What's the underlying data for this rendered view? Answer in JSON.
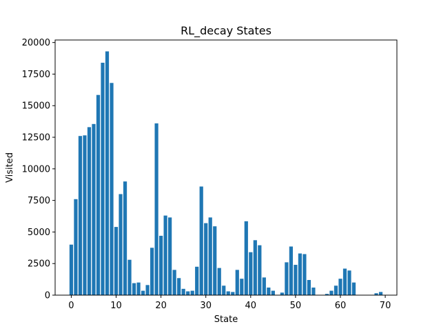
{
  "chart_data": {
    "type": "bar",
    "title": "RL_decay States",
    "xlabel": "State",
    "ylabel": "Visited",
    "xlim": [
      -3.6,
      72.6
    ],
    "ylim": [
      0,
      20200
    ],
    "xticks": [
      0,
      10,
      20,
      30,
      40,
      50,
      60,
      70
    ],
    "xtick_labels": [
      "0",
      "10",
      "20",
      "30",
      "40",
      "50",
      "60",
      "70"
    ],
    "yticks": [
      0,
      2500,
      5000,
      7500,
      10000,
      12500,
      15000,
      17500,
      20000
    ],
    "ytick_labels": [
      "0",
      "2500",
      "5000",
      "7500",
      "10000",
      "12500",
      "15000",
      "17500",
      "20000"
    ],
    "grid": false,
    "bar_color": "#1f77b4",
    "x": [
      0,
      1,
      2,
      3,
      4,
      5,
      6,
      7,
      8,
      9,
      10,
      11,
      12,
      13,
      14,
      15,
      16,
      17,
      18,
      19,
      20,
      21,
      22,
      23,
      24,
      25,
      26,
      27,
      28,
      29,
      30,
      31,
      32,
      33,
      34,
      35,
      36,
      37,
      38,
      39,
      40,
      41,
      42,
      43,
      44,
      45,
      46,
      47,
      48,
      49,
      50,
      51,
      52,
      53,
      54,
      55,
      56,
      57,
      58,
      59,
      60,
      61,
      62,
      63,
      64,
      65,
      66,
      67,
      68,
      69,
      70
    ],
    "values": [
      4000,
      7600,
      12600,
      12650,
      13300,
      13550,
      15850,
      18400,
      19300,
      16800,
      5400,
      8000,
      9000,
      2800,
      950,
      1000,
      350,
      800,
      3750,
      13600,
      4700,
      6300,
      6150,
      2000,
      1350,
      500,
      300,
      350,
      2250,
      8600,
      5700,
      6150,
      5450,
      2150,
      750,
      300,
      250,
      2000,
      1300,
      5850,
      3400,
      4350,
      3950,
      1400,
      600,
      350,
      0,
      200,
      2600,
      3850,
      2400,
      3300,
      3250,
      1200,
      600,
      0,
      0,
      100,
      350,
      750,
      1300,
      2100,
      1950,
      1000,
      0,
      0,
      0,
      0,
      150,
      250,
      0
    ]
  }
}
